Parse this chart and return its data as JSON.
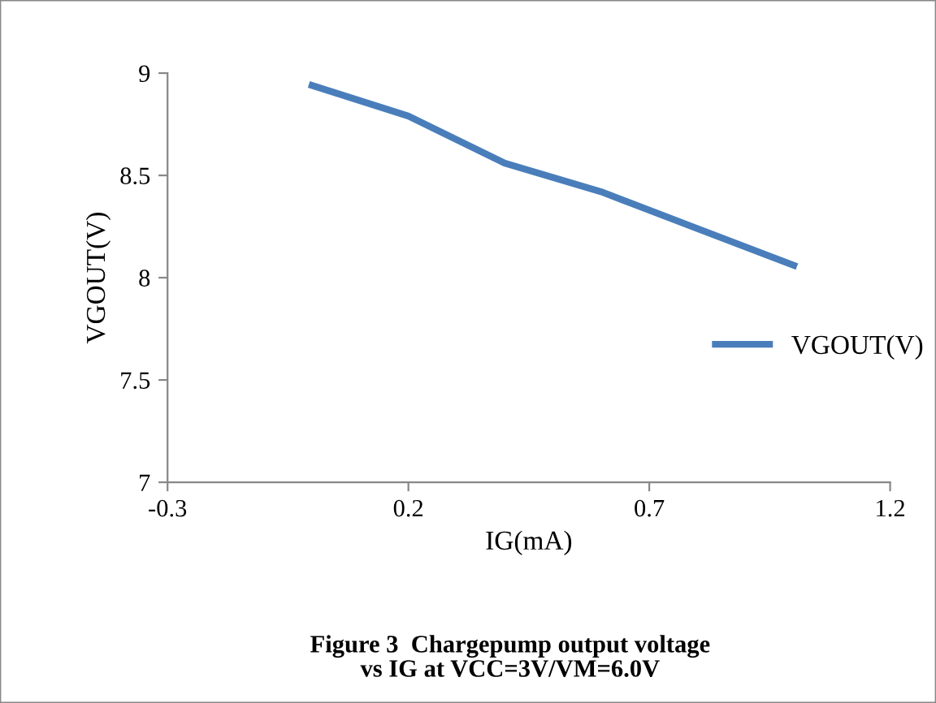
{
  "chart_data": {
    "type": "line",
    "x": [
      0,
      0.2,
      0.4,
      0.6,
      0.8,
      1.0
    ],
    "series": [
      {
        "name": "VGOUT(V)",
        "color": "#4a7ebb",
        "values": [
          8.94,
          8.79,
          8.56,
          8.42,
          8.24,
          8.06
        ]
      }
    ],
    "xlabel": "IG(mA)",
    "ylabel": "VGOUT(V)",
    "xlim": [
      -0.3,
      1.2
    ],
    "xticks": [
      -0.3,
      0.2,
      0.7,
      1.2
    ],
    "ylim": [
      7,
      9
    ],
    "yticks": [
      7,
      7.5,
      8,
      8.5,
      9
    ],
    "grid": false,
    "legend": "right",
    "marker": "none",
    "line_style": "solid",
    "annotations": [
      "Figure 3  Chargepump output voltage\nvs IG at VCC=3V/VM=6.0V"
    ]
  }
}
